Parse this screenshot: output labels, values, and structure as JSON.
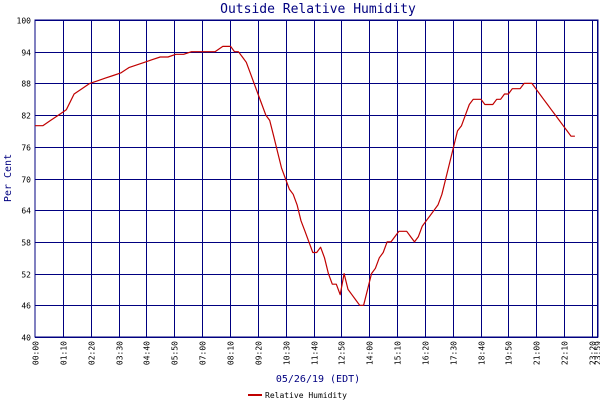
{
  "chart_data": {
    "type": "line",
    "title": "Outside Relative Humidity",
    "xlabel": "05/26/19 (EDT)",
    "ylabel": "Per Cent",
    "ylim": [
      40,
      100
    ],
    "yticks": [
      "40",
      "46",
      "52",
      "58",
      "64",
      "70",
      "76",
      "82",
      "88",
      "94",
      "100"
    ],
    "xticks": [
      "00:00",
      "01:10",
      "02:20",
      "03:30",
      "04:40",
      "05:50",
      "07:00",
      "08:10",
      "09:20",
      "10:30",
      "11:40",
      "12:50",
      "14:00",
      "15:10",
      "16:20",
      "17:30",
      "18:40",
      "19:50",
      "21:00",
      "22:10",
      "23:20",
      "23:59"
    ],
    "grid": true,
    "legend": "bottom-center",
    "colors": {
      "series": "#c00000",
      "grid": "#000080",
      "title": "#000080"
    },
    "series": [
      {
        "name": "Relative Humidity",
        "points": [
          [
            0,
            80
          ],
          [
            20,
            80
          ],
          [
            40,
            81
          ],
          [
            60,
            82
          ],
          [
            80,
            83
          ],
          [
            100,
            86
          ],
          [
            120,
            87
          ],
          [
            140,
            88
          ],
          [
            160,
            88.5
          ],
          [
            180,
            89
          ],
          [
            200,
            89.5
          ],
          [
            220,
            90
          ],
          [
            240,
            91
          ],
          [
            260,
            91.5
          ],
          [
            280,
            92
          ],
          [
            300,
            92.5
          ],
          [
            320,
            93
          ],
          [
            340,
            93
          ],
          [
            360,
            93.5
          ],
          [
            380,
            93.5
          ],
          [
            400,
            94
          ],
          [
            420,
            94
          ],
          [
            440,
            94
          ],
          [
            460,
            94
          ],
          [
            480,
            95
          ],
          [
            500,
            95
          ],
          [
            510,
            94
          ],
          [
            520,
            94
          ],
          [
            530,
            93
          ],
          [
            540,
            92
          ],
          [
            550,
            90
          ],
          [
            560,
            88
          ],
          [
            570,
            86
          ],
          [
            580,
            84
          ],
          [
            590,
            82
          ],
          [
            600,
            81
          ],
          [
            610,
            78
          ],
          [
            620,
            75
          ],
          [
            630,
            72
          ],
          [
            640,
            70
          ],
          [
            650,
            68
          ],
          [
            660,
            67
          ],
          [
            670,
            65
          ],
          [
            680,
            62
          ],
          [
            690,
            60
          ],
          [
            700,
            58
          ],
          [
            710,
            56
          ],
          [
            720,
            56
          ],
          [
            730,
            57
          ],
          [
            740,
            55
          ],
          [
            750,
            52
          ],
          [
            760,
            50
          ],
          [
            770,
            50
          ],
          [
            780,
            48
          ],
          [
            790,
            52
          ],
          [
            800,
            49
          ],
          [
            810,
            48
          ],
          [
            820,
            47
          ],
          [
            830,
            46
          ],
          [
            840,
            46
          ],
          [
            850,
            49
          ],
          [
            860,
            52
          ],
          [
            870,
            53
          ],
          [
            880,
            55
          ],
          [
            890,
            56
          ],
          [
            900,
            58
          ],
          [
            910,
            58
          ],
          [
            920,
            59
          ],
          [
            930,
            60
          ],
          [
            940,
            60
          ],
          [
            950,
            60
          ],
          [
            960,
            59
          ],
          [
            970,
            58
          ],
          [
            980,
            59
          ],
          [
            990,
            61
          ],
          [
            1000,
            62
          ],
          [
            1010,
            63
          ],
          [
            1020,
            64
          ],
          [
            1030,
            65
          ],
          [
            1040,
            67
          ],
          [
            1050,
            70
          ],
          [
            1060,
            73
          ],
          [
            1070,
            76
          ],
          [
            1080,
            79
          ],
          [
            1090,
            80
          ],
          [
            1100,
            82
          ],
          [
            1110,
            84
          ],
          [
            1120,
            85
          ],
          [
            1130,
            85
          ],
          [
            1140,
            85
          ],
          [
            1150,
            84
          ],
          [
            1160,
            84
          ],
          [
            1170,
            84
          ],
          [
            1180,
            85
          ],
          [
            1190,
            85
          ],
          [
            1200,
            86
          ],
          [
            1210,
            86
          ],
          [
            1220,
            87
          ],
          [
            1230,
            87
          ],
          [
            1240,
            87
          ],
          [
            1250,
            88
          ],
          [
            1260,
            88
          ],
          [
            1270,
            88
          ],
          [
            1280,
            87
          ],
          [
            1290,
            86
          ],
          [
            1300,
            85
          ],
          [
            1310,
            84
          ],
          [
            1320,
            83
          ],
          [
            1330,
            82
          ],
          [
            1340,
            81
          ],
          [
            1350,
            80
          ],
          [
            1360,
            79
          ],
          [
            1370,
            78
          ],
          [
            1380,
            78
          ]
        ]
      }
    ]
  }
}
